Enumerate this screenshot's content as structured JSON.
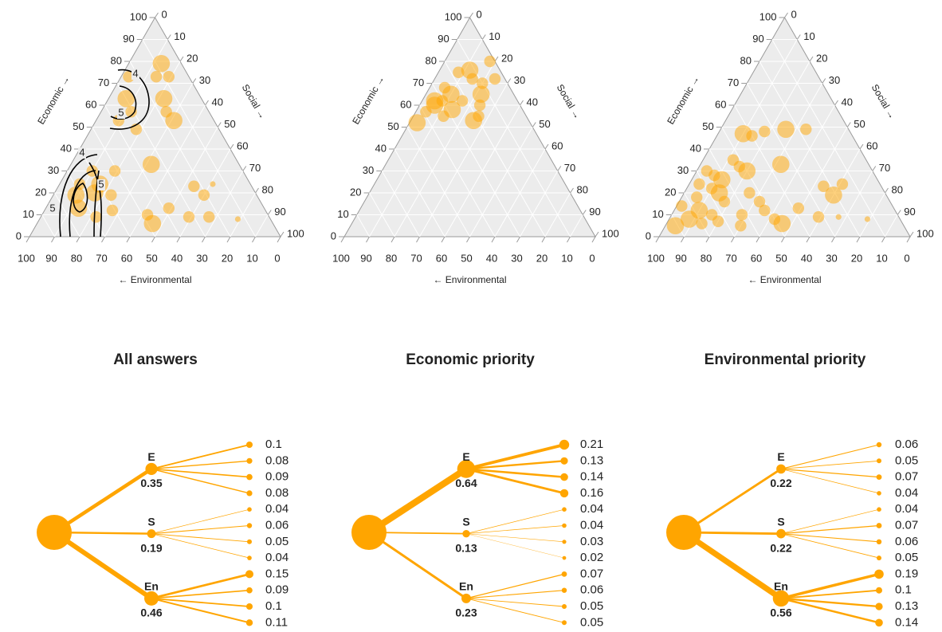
{
  "chart_data": [
    {
      "type": "ternary",
      "economic_label": "Economic →",
      "social_label": "Social →",
      "environmental_label": "← Environmental",
      "ticks": [
        0,
        10,
        20,
        30,
        40,
        50,
        60,
        70,
        80,
        90,
        100
      ],
      "grid": true,
      "color": "#ffa500",
      "contour_labels": [
        4,
        5,
        4,
        5,
        5
      ],
      "points": {
        "economic": [
          79,
          73,
          73,
          73,
          63,
          57,
          63,
          57,
          53,
          49,
          53,
          33,
          30,
          24,
          19,
          13,
          9,
          12,
          19,
          20,
          10,
          6,
          13,
          9,
          9,
          23,
          19,
          24,
          8,
          30,
          24
        ],
        "social": [
          13,
          19,
          14,
          3,
          7,
          12,
          22,
          26,
          31,
          18,
          9,
          32,
          10,
          8,
          9,
          13,
          22,
          27,
          23,
          16,
          42,
          46,
          49,
          59,
          67,
          54,
          60,
          61,
          79,
          19,
          16
        ],
        "environmental": [
          8,
          8,
          13,
          24,
          30,
          31,
          15,
          17,
          16,
          33,
          38,
          35,
          60,
          68,
          72,
          74,
          69,
          61,
          58,
          64,
          48,
          48,
          38,
          32,
          24,
          23,
          21,
          15,
          13,
          51,
          60
        ],
        "size": [
          3,
          2,
          2,
          2,
          3,
          2,
          3,
          2,
          3,
          2,
          2,
          3,
          2,
          2,
          3,
          3,
          2,
          2,
          2,
          3,
          2,
          3,
          2,
          2,
          2,
          2,
          2,
          1,
          1,
          2,
          3
        ]
      }
    },
    {
      "type": "ternary",
      "economic_label": "Economic →",
      "social_label": "Social →",
      "environmental_label": "← Environmental",
      "ticks": [
        0,
        10,
        20,
        30,
        40,
        50,
        60,
        70,
        80,
        90,
        100
      ],
      "grid": true,
      "color": "#ffa500",
      "points": {
        "economic": [
          52,
          57,
          60,
          62,
          65,
          58,
          55,
          62,
          68,
          75,
          76,
          72,
          80,
          70,
          72,
          65,
          60,
          55,
          53,
          62
        ],
        "social": [
          3,
          4,
          6,
          8,
          10,
          14,
          12,
          5,
          6,
          8,
          12,
          15,
          18,
          20,
          24,
          22,
          24,
          26,
          25,
          16
        ],
        "environmental": [
          45,
          39,
          34,
          30,
          25,
          28,
          33,
          33,
          26,
          17,
          12,
          13,
          2,
          10,
          4,
          13,
          16,
          19,
          22,
          22
        ],
        "size": [
          3,
          2,
          3,
          2,
          3,
          3,
          2,
          3,
          2,
          2,
          3,
          2,
          2,
          2,
          2,
          3,
          2,
          2,
          3,
          2
        ]
      }
    },
    {
      "type": "ternary",
      "economic_label": "Economic →",
      "social_label": "Social →",
      "environmental_label": "← Environmental",
      "ticks": [
        0,
        10,
        20,
        30,
        40,
        50,
        60,
        70,
        80,
        90,
        100
      ],
      "grid": true,
      "color": "#ffa500",
      "points": {
        "economic": [
          47,
          46,
          48,
          49,
          49,
          33,
          35,
          32,
          30,
          28,
          26,
          24,
          22,
          20,
          18,
          16,
          14,
          12,
          10,
          8,
          7,
          6,
          10,
          12,
          8,
          6,
          13,
          9,
          9,
          23,
          19,
          24,
          8,
          20,
          16,
          30,
          5,
          5
        ],
        "social": [
          10,
          14,
          18,
          26,
          34,
          32,
          12,
          16,
          20,
          8,
          12,
          4,
          10,
          14,
          6,
          18,
          2,
          10,
          16,
          8,
          20,
          14,
          28,
          36,
          42,
          46,
          49,
          59,
          67,
          54,
          60,
          61,
          79,
          26,
          32,
          4,
          4,
          30
        ],
        "environmental": [
          43,
          40,
          34,
          25,
          17,
          35,
          53,
          52,
          50,
          64,
          62,
          72,
          68,
          66,
          76,
          66,
          84,
          78,
          74,
          84,
          73,
          80,
          62,
          52,
          50,
          48,
          38,
          32,
          24,
          23,
          21,
          15,
          13,
          54,
          52,
          66,
          91,
          65
        ],
        "size": [
          3,
          2,
          2,
          3,
          2,
          3,
          2,
          2,
          3,
          2,
          3,
          2,
          2,
          3,
          2,
          2,
          2,
          3,
          2,
          3,
          2,
          2,
          2,
          2,
          2,
          3,
          2,
          2,
          1,
          2,
          3,
          2,
          1,
          2,
          2,
          2,
          3,
          2
        ]
      }
    },
    {
      "type": "tree",
      "title": "All answers",
      "color": "#ffa500",
      "branches": [
        {
          "label": "E",
          "value": 0.35,
          "leaves": [
            0.1,
            0.08,
            0.09,
            0.08
          ]
        },
        {
          "label": "S",
          "value": 0.19,
          "leaves": [
            0.04,
            0.06,
            0.05,
            0.04
          ]
        },
        {
          "label": "En",
          "value": 0.46,
          "leaves": [
            0.15,
            0.09,
            0.1,
            0.11
          ]
        }
      ]
    },
    {
      "type": "tree",
      "title": "Economic priority",
      "color": "#ffa500",
      "branches": [
        {
          "label": "E",
          "value": 0.64,
          "leaves": [
            0.21,
            0.13,
            0.14,
            0.16
          ]
        },
        {
          "label": "S",
          "value": 0.13,
          "leaves": [
            0.04,
            0.04,
            0.03,
            0.02
          ]
        },
        {
          "label": "En",
          "value": 0.23,
          "leaves": [
            0.07,
            0.06,
            0.05,
            0.05
          ]
        }
      ]
    },
    {
      "type": "tree",
      "title": "Environmental priority",
      "color": "#ffa500",
      "branches": [
        {
          "label": "E",
          "value": 0.22,
          "leaves": [
            0.06,
            0.05,
            0.07,
            0.04
          ]
        },
        {
          "label": "S",
          "value": 0.22,
          "leaves": [
            0.04,
            0.07,
            0.06,
            0.05
          ]
        },
        {
          "label": "En",
          "value": 0.56,
          "leaves": [
            0.19,
            0.1,
            0.13,
            0.14
          ]
        }
      ]
    }
  ]
}
